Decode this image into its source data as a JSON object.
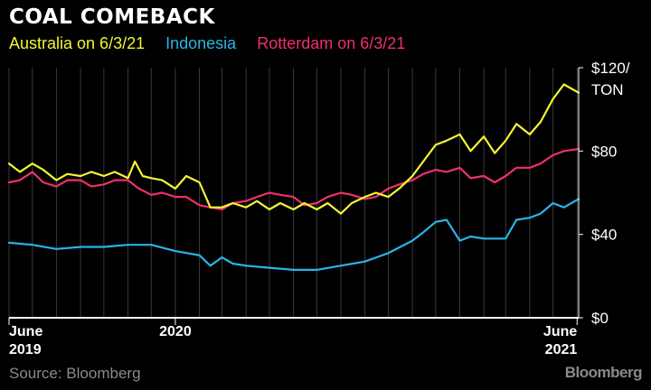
{
  "header": {
    "title": "COAL COMEBACK",
    "source": "Source: Bloomberg",
    "brand": "Bloomberg"
  },
  "chart_data": {
    "type": "line",
    "title": "COAL COMEBACK",
    "ylabel_unit": "TON",
    "ylim": [
      0,
      120
    ],
    "yticks": [
      {
        "value": 0,
        "label": "$0"
      },
      {
        "value": 40,
        "label": "$40"
      },
      {
        "value": 80,
        "label": "$80"
      },
      {
        "value": 120,
        "label": "$120/"
      }
    ],
    "x_range": [
      "2019-06-01",
      "2021-06-03"
    ],
    "xticks": [
      {
        "date": "2019-06-01",
        "label": "June",
        "sublabel": "2019",
        "align": "start"
      },
      {
        "date": "2020-01-01",
        "label": "2020",
        "sublabel": "",
        "align": "middle"
      },
      {
        "date": "2021-06-01",
        "label": "June",
        "sublabel": "2021",
        "align": "end"
      }
    ],
    "grid": "vertical-monthly",
    "legend_position": "top-left",
    "series": [
      {
        "name": "Australia on 6/3/21",
        "color": "#f5f533",
        "points": [
          [
            "2019-06-01",
            74
          ],
          [
            "2019-06-15",
            70
          ],
          [
            "2019-07-01",
            74
          ],
          [
            "2019-07-15",
            71
          ],
          [
            "2019-08-01",
            66
          ],
          [
            "2019-08-15",
            69
          ],
          [
            "2019-09-01",
            68
          ],
          [
            "2019-09-15",
            70
          ],
          [
            "2019-10-01",
            68
          ],
          [
            "2019-10-15",
            70
          ],
          [
            "2019-11-01",
            67
          ],
          [
            "2019-11-10",
            75
          ],
          [
            "2019-11-20",
            68
          ],
          [
            "2019-12-01",
            67
          ],
          [
            "2019-12-15",
            66
          ],
          [
            "2020-01-01",
            62
          ],
          [
            "2020-01-15",
            68
          ],
          [
            "2020-02-01",
            65
          ],
          [
            "2020-02-15",
            53
          ],
          [
            "2020-03-01",
            53
          ],
          [
            "2020-03-15",
            55
          ],
          [
            "2020-04-01",
            53
          ],
          [
            "2020-04-15",
            56
          ],
          [
            "2020-05-01",
            52
          ],
          [
            "2020-05-15",
            55
          ],
          [
            "2020-06-01",
            52
          ],
          [
            "2020-06-15",
            55
          ],
          [
            "2020-07-01",
            52
          ],
          [
            "2020-07-15",
            55
          ],
          [
            "2020-08-01",
            50
          ],
          [
            "2020-08-15",
            55
          ],
          [
            "2020-09-01",
            58
          ],
          [
            "2020-09-15",
            60
          ],
          [
            "2020-10-01",
            58
          ],
          [
            "2020-10-15",
            62
          ],
          [
            "2020-11-01",
            68
          ],
          [
            "2020-11-15",
            75
          ],
          [
            "2020-12-01",
            83
          ],
          [
            "2020-12-15",
            85
          ],
          [
            "2021-01-01",
            88
          ],
          [
            "2021-01-15",
            80
          ],
          [
            "2021-02-01",
            87
          ],
          [
            "2021-02-15",
            79
          ],
          [
            "2021-03-01",
            85
          ],
          [
            "2021-03-15",
            93
          ],
          [
            "2021-04-01",
            88
          ],
          [
            "2021-04-15",
            94
          ],
          [
            "2021-05-01",
            105
          ],
          [
            "2021-05-15",
            112
          ],
          [
            "2021-06-03",
            108
          ]
        ]
      },
      {
        "name": "Indonesia",
        "color": "#2ab4e8",
        "points": [
          [
            "2019-06-01",
            36
          ],
          [
            "2019-07-01",
            35
          ],
          [
            "2019-08-01",
            33
          ],
          [
            "2019-09-01",
            34
          ],
          [
            "2019-10-01",
            34
          ],
          [
            "2019-11-01",
            35
          ],
          [
            "2019-12-01",
            35
          ],
          [
            "2020-01-01",
            32
          ],
          [
            "2020-02-01",
            30
          ],
          [
            "2020-02-15",
            25
          ],
          [
            "2020-03-01",
            29
          ],
          [
            "2020-03-15",
            26
          ],
          [
            "2020-04-01",
            25
          ],
          [
            "2020-05-01",
            24
          ],
          [
            "2020-06-01",
            23
          ],
          [
            "2020-07-01",
            23
          ],
          [
            "2020-08-01",
            25
          ],
          [
            "2020-09-01",
            27
          ],
          [
            "2020-10-01",
            31
          ],
          [
            "2020-11-01",
            37
          ],
          [
            "2020-11-15",
            41
          ],
          [
            "2020-12-01",
            46
          ],
          [
            "2020-12-15",
            47
          ],
          [
            "2021-01-01",
            37
          ],
          [
            "2021-01-15",
            39
          ],
          [
            "2021-02-01",
            38
          ],
          [
            "2021-03-01",
            38
          ],
          [
            "2021-03-15",
            47
          ],
          [
            "2021-04-01",
            48
          ],
          [
            "2021-04-15",
            50
          ],
          [
            "2021-05-01",
            55
          ],
          [
            "2021-05-15",
            53
          ],
          [
            "2021-06-03",
            57
          ]
        ]
      },
      {
        "name": "Rotterdam on 6/3/21",
        "color": "#f0306a",
        "points": [
          [
            "2019-06-01",
            65
          ],
          [
            "2019-06-15",
            66
          ],
          [
            "2019-07-01",
            70
          ],
          [
            "2019-07-15",
            65
          ],
          [
            "2019-08-01",
            63
          ],
          [
            "2019-08-15",
            66
          ],
          [
            "2019-09-01",
            66
          ],
          [
            "2019-09-15",
            63
          ],
          [
            "2019-10-01",
            64
          ],
          [
            "2019-10-15",
            66
          ],
          [
            "2019-11-01",
            66
          ],
          [
            "2019-11-15",
            62
          ],
          [
            "2019-12-01",
            59
          ],
          [
            "2019-12-15",
            60
          ],
          [
            "2020-01-01",
            58
          ],
          [
            "2020-01-15",
            58
          ],
          [
            "2020-02-01",
            54
          ],
          [
            "2020-02-15",
            53
          ],
          [
            "2020-03-01",
            52
          ],
          [
            "2020-03-15",
            55
          ],
          [
            "2020-04-01",
            56
          ],
          [
            "2020-04-15",
            58
          ],
          [
            "2020-05-01",
            60
          ],
          [
            "2020-05-15",
            59
          ],
          [
            "2020-06-01",
            58
          ],
          [
            "2020-06-15",
            54
          ],
          [
            "2020-07-01",
            55
          ],
          [
            "2020-07-15",
            58
          ],
          [
            "2020-08-01",
            60
          ],
          [
            "2020-08-15",
            59
          ],
          [
            "2020-09-01",
            57
          ],
          [
            "2020-09-15",
            58
          ],
          [
            "2020-10-01",
            62
          ],
          [
            "2020-10-15",
            64
          ],
          [
            "2020-11-01",
            66
          ],
          [
            "2020-11-15",
            69
          ],
          [
            "2020-12-01",
            71
          ],
          [
            "2020-12-15",
            70
          ],
          [
            "2021-01-01",
            72
          ],
          [
            "2021-01-15",
            67
          ],
          [
            "2021-02-01",
            68
          ],
          [
            "2021-02-15",
            65
          ],
          [
            "2021-03-01",
            68
          ],
          [
            "2021-03-15",
            72
          ],
          [
            "2021-04-01",
            72
          ],
          [
            "2021-04-15",
            74
          ],
          [
            "2021-05-01",
            78
          ],
          [
            "2021-05-15",
            80
          ],
          [
            "2021-06-03",
            81
          ]
        ]
      }
    ]
  }
}
